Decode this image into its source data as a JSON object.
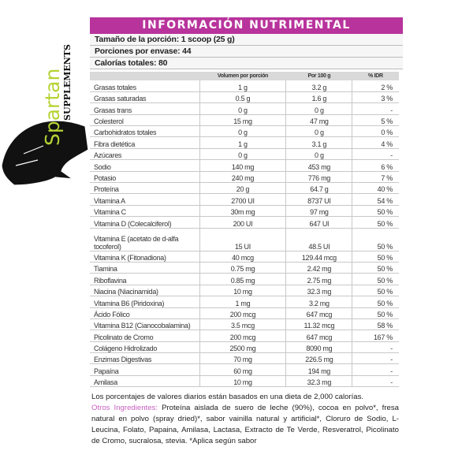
{
  "logo": {
    "brand": "Spartan",
    "sub": "SUPPLEMENTS",
    "colors": {
      "green": "#b5d334",
      "black": "#111111"
    }
  },
  "title": "INFORMACIÓN NUTRIMENTAL",
  "accent": "#b8339c",
  "serving": [
    "Tamaño de la porción: 1 scoop (25 g)",
    "Porciones por envase: 44",
    "Calorías totales: 80"
  ],
  "headers": [
    "",
    "Volumen por porción",
    "Por 100 g",
    "% IDR"
  ],
  "rows": [
    [
      "Grasas totales",
      "1 g",
      "3.2 g",
      "2 %"
    ],
    [
      "Grasas saturadas",
      "0.5 g",
      "1.6 g",
      "3 %"
    ],
    [
      "Grasas trans",
      "0 g",
      "0 g",
      "-"
    ],
    [
      "Colesterol",
      "15 mg",
      "47 mg",
      "5 %"
    ],
    [
      "Carbohidratos totales",
      "0 g",
      "0 g",
      "0 %"
    ],
    [
      "Fibra dietética",
      "1 g",
      "3.1 g",
      "4 %"
    ],
    [
      "Azúcares",
      "0 g",
      "0 g",
      "-"
    ],
    [
      "Sodio",
      "140 mg",
      "453 mg",
      "6 %"
    ],
    [
      "Potasio",
      "240 mg",
      "776 mg",
      "7 %"
    ],
    [
      "Proteína",
      "20 g",
      "64.7 g",
      "40 %"
    ],
    [
      "Vitamina A",
      "2700 UI",
      "8737 UI",
      "54 %"
    ],
    [
      "Vitamina C",
      "30m mg",
      "97 mg",
      "50 %"
    ],
    [
      "Vitamina D (Colecalciferol)",
      "200 UI",
      "647 UI",
      "50 %"
    ],
    [
      "Vitamina E (acetato de d-alfa tocoferol)",
      "15 UI",
      "48.5 UI",
      "50 %"
    ],
    [
      "Vitamina K (Fitonadiona)",
      "40 mcg",
      "129.44 mcg",
      "50 %"
    ],
    [
      "Tiamina",
      "0.75 mg",
      "2.42 mg",
      "50 %"
    ],
    [
      "Riboflavina",
      "0.85 mg",
      "2.75 mg",
      "50 %"
    ],
    [
      "Niacina (Niacinamida)",
      "10 mg",
      "32.3 mg",
      "50 %"
    ],
    [
      "Vitamina B6 (Piridoxina)",
      "1 mg",
      "3.2 mg",
      "50 %"
    ],
    [
      "Ácido Fólico",
      "200 mcg",
      "647 mcg",
      "50 %"
    ],
    [
      "Vitamina B12 (Cianocobalamina)",
      "3.5 mcg",
      "11.32 mcg",
      "58 %"
    ],
    [
      "Picolinato de Cromo",
      "200 mcg",
      "647 mcg",
      "167 %"
    ],
    [
      "Colágeno Hidrolizado",
      "2500 mg",
      "8090 mg",
      "-"
    ],
    [
      "Enzimas Digestivas",
      "70 mg",
      "226.5 mg",
      "-"
    ],
    [
      "Papaína",
      "60 mg",
      "194 mg",
      "-"
    ],
    [
      "Amilasa",
      "10 mg",
      "32.3 mg",
      "-"
    ]
  ],
  "footer": {
    "note": "Los porcentajes de valores diarios están basados en una dieta de 2,000 calorías.",
    "ingredients_label": "Otros Ingredientes:",
    "ingredients": " Proteína aislada de suero de leche (90%), cocoa en polvo*, fresa natural en polvo (spray dried)*, sabor vainilla natural y artificial*, Cloruro de Sodio, L-Leucina, Folato, Papaina, Amilasa, Lactasa, Extracto de Te Verde, Resveratrol, Picolinato de Cromo, sucralosa, stevia. *Aplica según sabor"
  }
}
